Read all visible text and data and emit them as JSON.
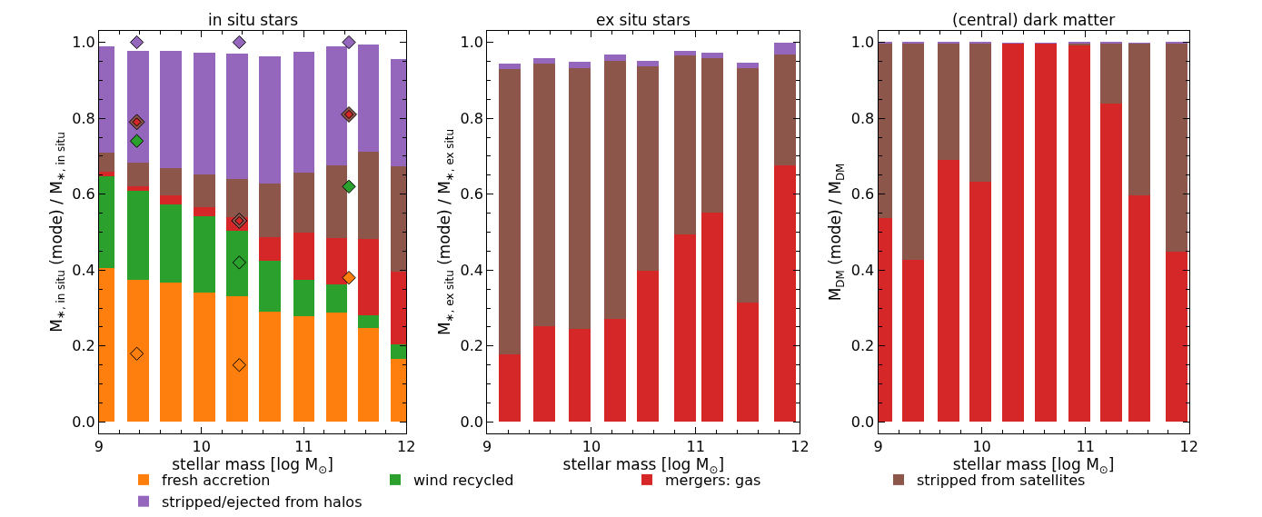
{
  "chart_data": [
    {
      "type": "bar",
      "stacked": true,
      "title": "in situ stars",
      "xlabel": "stellar mass [log M$_{⊙}$]",
      "ylabel": "M$_{∗, in situ}$ (mode) / M$_{∗, in situ}$",
      "x": [
        9.05,
        9.38,
        9.7,
        10.03,
        10.35,
        10.67,
        11.0,
        11.32,
        11.63,
        11.95
      ],
      "xlim": [
        9,
        12
      ],
      "xticks": [
        9,
        10,
        11,
        12
      ],
      "ylim": [
        -0.03,
        1.03
      ],
      "yticks": [
        {
          "value": 0,
          "label": "0.0"
        },
        {
          "value": 0.2,
          "label": "0.2"
        },
        {
          "value": 0.4,
          "label": "0.4"
        },
        {
          "value": 0.6,
          "label": "0.6"
        },
        {
          "value": 0.8,
          "label": "0.8"
        },
        {
          "value": 1,
          "label": "1.0"
        }
      ],
      "legend": "bottom",
      "series": [
        {
          "name": "fresh accretion",
          "color": "#ff7f0e",
          "values": [
            0.405,
            0.374,
            0.367,
            0.34,
            0.331,
            0.291,
            0.278,
            0.288,
            0.248,
            0.167
          ]
        },
        {
          "name": "wind recycled",
          "color": "#2ca02c",
          "values": [
            0.241,
            0.234,
            0.207,
            0.201,
            0.172,
            0.134,
            0.096,
            0.074,
            0.034,
            0.038
          ]
        },
        {
          "name": "mergers: gas",
          "color": "#d62728",
          "values": [
            0.012,
            0.013,
            0.022,
            0.024,
            0.036,
            0.063,
            0.124,
            0.122,
            0.2,
            0.191
          ]
        },
        {
          "name": "stripped from satellites",
          "color": "#8c564b",
          "values": [
            0.052,
            0.061,
            0.072,
            0.088,
            0.102,
            0.139,
            0.158,
            0.193,
            0.229,
            0.277
          ]
        },
        {
          "name": "stripped/ejected from halos",
          "color": "#9467bd",
          "values": [
            0.28,
            0.296,
            0.31,
            0.32,
            0.33,
            0.336,
            0.319,
            0.313,
            0.282,
            0.282
          ]
        },
        {
          "type": "scatter",
          "marker": "diamond",
          "color": "#ff7f0e",
          "x": [
            9.37,
            10.37,
            11.44
          ],
          "values": [
            0.18,
            0.15,
            0.38
          ]
        },
        {
          "type": "scatter",
          "marker": "diamond",
          "color": "#2ca02c",
          "x": [
            9.37,
            10.37,
            11.44
          ],
          "values": [
            0.74,
            0.42,
            0.62
          ]
        },
        {
          "type": "scatter",
          "marker": "diamond",
          "color": "#8c564b",
          "x": [
            9.37,
            10.37,
            11.44
          ],
          "values": [
            0.79,
            0.53,
            0.81
          ]
        },
        {
          "type": "scatter",
          "marker": "diamond",
          "color": "#d62728",
          "x": [
            9.37,
            10.37,
            11.44
          ],
          "values": [
            0.79,
            0.53,
            0.81
          ]
        },
        {
          "type": "scatter",
          "marker": "diamond",
          "color": "#9467bd",
          "x": [
            9.37,
            10.37,
            11.44
          ],
          "values": [
            1.0,
            1.0,
            1.0
          ]
        }
      ]
    },
    {
      "type": "bar",
      "stacked": true,
      "title": "ex situ stars",
      "xlabel": "stellar mass [log M$_{⊙}$]",
      "ylabel": "M$_{∗, ex situ}$ (mode) / M$_{∗, ex situ}$",
      "x": [
        9.22,
        9.55,
        9.89,
        10.23,
        10.54,
        10.9,
        11.16,
        11.5,
        11.86
      ],
      "xlim": [
        9,
        12
      ],
      "xticks": [
        9,
        10,
        11,
        12
      ],
      "ylim": [
        -0.03,
        1.03
      ],
      "yticks": [
        {
          "value": 0,
          "label": "0.0"
        },
        {
          "value": 0.2,
          "label": "0.2"
        },
        {
          "value": 0.4,
          "label": "0.4"
        },
        {
          "value": 0.6,
          "label": "0.6"
        },
        {
          "value": 0.8,
          "label": "0.8"
        },
        {
          "value": 1,
          "label": "1.0"
        }
      ],
      "series": [
        {
          "color": "#d62728",
          "values": [
            0.177,
            0.252,
            0.244,
            0.271,
            0.398,
            0.493,
            0.551,
            0.315,
            0.675
          ]
        },
        {
          "color": "#8c564b",
          "values": [
            0.753,
            0.692,
            0.688,
            0.68,
            0.539,
            0.473,
            0.408,
            0.617,
            0.293
          ]
        },
        {
          "color": "#9467bd",
          "values": [
            0.014,
            0.015,
            0.017,
            0.017,
            0.014,
            0.012,
            0.014,
            0.015,
            0.032
          ]
        }
      ]
    },
    {
      "type": "bar",
      "stacked": true,
      "title": "(central) dark matter",
      "xlabel": "stellar mass [log M$_{⊙}$]",
      "ylabel": "M$_{DM}$ (mode) / M$_{DM}$",
      "x": [
        9.03,
        9.34,
        9.68,
        9.99,
        10.3,
        10.62,
        10.94,
        11.25,
        11.52,
        11.88
      ],
      "xlim": [
        9,
        12
      ],
      "xticks": [
        9,
        10,
        11,
        12
      ],
      "ylim": [
        -0.03,
        1.03
      ],
      "yticks": [
        {
          "value": 0,
          "label": "0.0"
        },
        {
          "value": 0.2,
          "label": "0.2"
        },
        {
          "value": 0.4,
          "label": "0.4"
        },
        {
          "value": 0.6,
          "label": "0.6"
        },
        {
          "value": 0.8,
          "label": "0.8"
        },
        {
          "value": 1,
          "label": "1.0"
        }
      ],
      "series": [
        {
          "color": "#d62728",
          "values": [
            0.536,
            0.426,
            0.691,
            0.634,
            0.997,
            0.997,
            0.994,
            0.839,
            0.598,
            0.449
          ]
        },
        {
          "color": "#8c564b",
          "values": [
            0.462,
            0.572,
            0.307,
            0.364,
            0.0,
            0.0,
            0.004,
            0.159,
            0.399,
            0.549
          ]
        },
        {
          "color": "#9467bd",
          "values": [
            0.002,
            0.002,
            0.002,
            0.002,
            0.001,
            0.001,
            0.002,
            0.002,
            0.001,
            0.001
          ]
        }
      ]
    }
  ]
}
